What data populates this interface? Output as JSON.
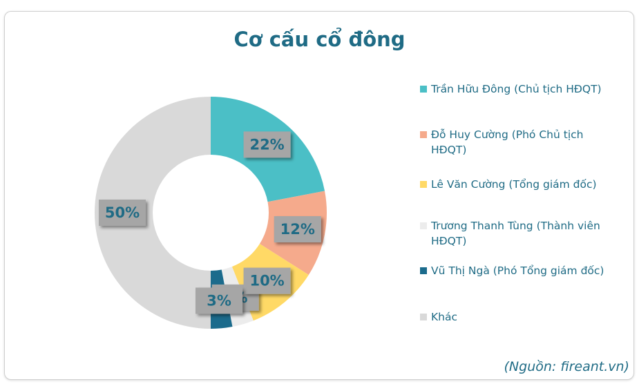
{
  "chart_data": {
    "type": "donut",
    "title": "Cơ cấu cổ đông",
    "categories": [
      "Trần Hữu Đông (Chủ tịch HĐQT)",
      "Đỗ Huy Cường (Phó Chủ tịch HĐQT)",
      "Lê Văn Cường (Tổng giám đốc)",
      "Trương Thanh Tùng (Thành viên HĐQT)",
      "Vũ Thị Ngà (Phó Tổng giám đốc)",
      "Khác"
    ],
    "values": [
      22,
      12,
      10,
      3,
      3,
      50
    ],
    "value_labels": [
      "22%",
      "12%",
      "10%",
      "3%",
      "3%",
      "50%"
    ],
    "colors": [
      "#4bbfc6",
      "#f5aa8c",
      "#ffd966",
      "#ececec",
      "#1b6b8c",
      "#d9d9d9"
    ],
    "legend": "right",
    "source": "(Nguồn: fireant.vn)"
  }
}
